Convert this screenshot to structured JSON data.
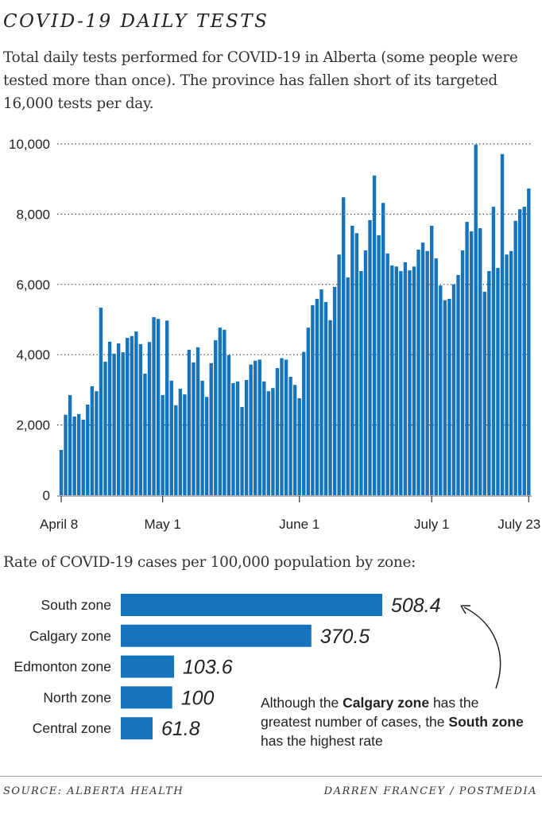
{
  "header": {
    "title": "COVID-19 DAILY TESTS",
    "subtitle": "Total daily tests performed for COVID-19 in Alberta (some people were tested more than once). The province has fallen short of its targeted 16,000 tests per day."
  },
  "colors": {
    "bar": "#1574bb",
    "grid": "#444444"
  },
  "chart_data": [
    {
      "type": "bar",
      "title": "",
      "xlabel": "",
      "ylabel": "",
      "ylim": [
        0,
        10000
      ],
      "yticks": [
        "0",
        "2,000",
        "4,000",
        "6,000",
        "8,000",
        "10,000"
      ],
      "ytick_values": [
        0,
        2000,
        4000,
        6000,
        8000,
        10000
      ],
      "grid": "horizontal dotted",
      "x_start": "April 8",
      "x_end": "July 23",
      "xticks": [
        {
          "label": "April 8",
          "day": 0
        },
        {
          "label": "May 1",
          "day": 23
        },
        {
          "label": "June 1",
          "day": 54
        },
        {
          "label": "July 1",
          "day": 84
        },
        {
          "label": "July 23",
          "day": 106
        }
      ],
      "values": [
        1290,
        2290,
        2850,
        2240,
        2310,
        2150,
        2580,
        3100,
        2960,
        5340,
        3800,
        4370,
        4030,
        4320,
        4070,
        4480,
        4530,
        4660,
        4300,
        3460,
        4360,
        5070,
        5020,
        2850,
        4970,
        3260,
        2560,
        3030,
        2870,
        4140,
        3780,
        4210,
        3260,
        2800,
        3760,
        4410,
        4770,
        4710,
        3990,
        3190,
        3240,
        2510,
        3280,
        3720,
        3830,
        3860,
        3240,
        2960,
        3050,
        3620,
        3900,
        3860,
        3370,
        3140,
        2760,
        4080,
        4770,
        5410,
        5590,
        5860,
        5500,
        4980,
        5930,
        6850,
        8480,
        6200,
        7670,
        7460,
        6380,
        6970,
        7830,
        9100,
        7400,
        8320,
        6880,
        6540,
        6510,
        6380,
        6630,
        6400,
        6510,
        6990,
        7190,
        6950,
        7670,
        6740,
        5970,
        5550,
        5590,
        6000,
        6270,
        6970,
        7780,
        7510,
        9980,
        7600,
        5790,
        6380,
        8210,
        6470,
        9710,
        6850,
        6950,
        7810,
        8140,
        8210,
        8730
      ]
    },
    {
      "type": "bar",
      "orientation": "horizontal",
      "title": "Rate of COVID-19 cases per 100,000 population by zone:",
      "categories": [
        "South zone",
        "Calgary zone",
        "Edmonton zone",
        "North zone",
        "Central zone"
      ],
      "values": [
        508.4,
        370.5,
        103.6,
        100,
        61.8
      ],
      "value_labels": [
        "508.4",
        "370.5",
        "103.6",
        "100",
        "61.8"
      ],
      "annotation": {
        "parts": [
          {
            "text": "Although the ",
            "bold": false
          },
          {
            "text": "Calgary zone",
            "bold": true
          },
          {
            "text": " has the greatest number of cases, the ",
            "bold": false
          },
          {
            "text": "South zone",
            "bold": true
          },
          {
            "text": " has the highest rate",
            "bold": false
          }
        ]
      }
    }
  ],
  "footer": {
    "source": "SOURCE: ALBERTA HEALTH",
    "credit": "DARREN FRANCEY / POSTMEDIA"
  }
}
